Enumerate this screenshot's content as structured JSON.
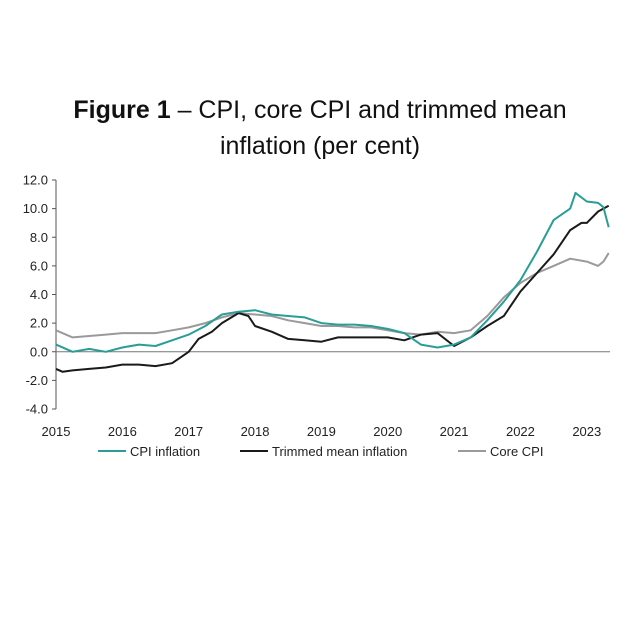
{
  "title": {
    "bold": "Figure 1",
    "rest_line1": " – CPI, core CPI and trimmed mean",
    "rest_line2": "inflation (per cent)"
  },
  "chart_data": {
    "type": "line",
    "ylim": [
      -4,
      12
    ],
    "yticks": [
      "12.0",
      "10.0",
      "8.0",
      "6.0",
      "4.0",
      "2.0",
      "0.0",
      "-2.0",
      "-4.0"
    ],
    "xlim": [
      2015,
      2023.35
    ],
    "xticks": [
      "2015",
      "2016",
      "2017",
      "2018",
      "2019",
      "2020",
      "2021",
      "2022",
      "2023"
    ],
    "legend_position": "bottom",
    "series": [
      {
        "name": "CPI inflation",
        "color": "#2a9d96",
        "points": [
          [
            2015.0,
            0.5
          ],
          [
            2015.25,
            0.0
          ],
          [
            2015.5,
            0.2
          ],
          [
            2015.75,
            0.0
          ],
          [
            2016.0,
            0.3
          ],
          [
            2016.25,
            0.5
          ],
          [
            2016.5,
            0.4
          ],
          [
            2016.75,
            0.8
          ],
          [
            2017.0,
            1.2
          ],
          [
            2017.25,
            1.8
          ],
          [
            2017.5,
            2.6
          ],
          [
            2017.75,
            2.8
          ],
          [
            2018.0,
            2.9
          ],
          [
            2018.25,
            2.6
          ],
          [
            2018.5,
            2.5
          ],
          [
            2018.75,
            2.4
          ],
          [
            2019.0,
            2.0
          ],
          [
            2019.25,
            1.9
          ],
          [
            2019.5,
            1.9
          ],
          [
            2019.75,
            1.8
          ],
          [
            2020.0,
            1.6
          ],
          [
            2020.25,
            1.3
          ],
          [
            2020.5,
            0.5
          ],
          [
            2020.75,
            0.3
          ],
          [
            2021.0,
            0.5
          ],
          [
            2021.25,
            1.0
          ],
          [
            2021.5,
            2.2
          ],
          [
            2021.75,
            3.5
          ],
          [
            2022.0,
            5.0
          ],
          [
            2022.25,
            7.0
          ],
          [
            2022.5,
            9.2
          ],
          [
            2022.75,
            10.0
          ],
          [
            2022.83,
            11.1
          ],
          [
            2023.0,
            10.5
          ],
          [
            2023.17,
            10.4
          ],
          [
            2023.25,
            10.1
          ],
          [
            2023.33,
            8.7
          ]
        ]
      },
      {
        "name": "Trimmed mean inflation",
        "color": "#1a1a1a",
        "points": [
          [
            2015.0,
            -1.2
          ],
          [
            2015.1,
            -1.4
          ],
          [
            2015.25,
            -1.3
          ],
          [
            2015.5,
            -1.2
          ],
          [
            2015.75,
            -1.1
          ],
          [
            2016.0,
            -0.9
          ],
          [
            2016.25,
            -0.9
          ],
          [
            2016.5,
            -1.0
          ],
          [
            2016.75,
            -0.8
          ],
          [
            2017.0,
            0.0
          ],
          [
            2017.15,
            0.9
          ],
          [
            2017.35,
            1.4
          ],
          [
            2017.5,
            2.0
          ],
          [
            2017.75,
            2.7
          ],
          [
            2017.9,
            2.5
          ],
          [
            2018.0,
            1.8
          ],
          [
            2018.25,
            1.4
          ],
          [
            2018.5,
            0.9
          ],
          [
            2018.75,
            0.8
          ],
          [
            2019.0,
            0.7
          ],
          [
            2019.25,
            1.0
          ],
          [
            2019.5,
            1.0
          ],
          [
            2019.75,
            1.0
          ],
          [
            2020.0,
            1.0
          ],
          [
            2020.25,
            0.8
          ],
          [
            2020.5,
            1.2
          ],
          [
            2020.75,
            1.3
          ],
          [
            2021.0,
            0.4
          ],
          [
            2021.25,
            1.0
          ],
          [
            2021.5,
            1.8
          ],
          [
            2021.75,
            2.5
          ],
          [
            2022.0,
            4.2
          ],
          [
            2022.25,
            5.5
          ],
          [
            2022.5,
            6.8
          ],
          [
            2022.75,
            8.5
          ],
          [
            2022.92,
            9.0
          ],
          [
            2023.0,
            9.0
          ],
          [
            2023.17,
            9.8
          ],
          [
            2023.33,
            10.2
          ]
        ]
      },
      {
        "name": "Core CPI",
        "color": "#9a9a9a",
        "points": [
          [
            2015.0,
            1.5
          ],
          [
            2015.25,
            1.0
          ],
          [
            2015.5,
            1.1
          ],
          [
            2015.75,
            1.2
          ],
          [
            2016.0,
            1.3
          ],
          [
            2016.25,
            1.3
          ],
          [
            2016.5,
            1.3
          ],
          [
            2016.75,
            1.5
          ],
          [
            2017.0,
            1.7
          ],
          [
            2017.25,
            2.0
          ],
          [
            2017.5,
            2.4
          ],
          [
            2017.75,
            2.7
          ],
          [
            2018.0,
            2.6
          ],
          [
            2018.25,
            2.5
          ],
          [
            2018.5,
            2.2
          ],
          [
            2018.75,
            2.0
          ],
          [
            2019.0,
            1.8
          ],
          [
            2019.25,
            1.8
          ],
          [
            2019.5,
            1.7
          ],
          [
            2019.75,
            1.7
          ],
          [
            2020.0,
            1.5
          ],
          [
            2020.25,
            1.3
          ],
          [
            2020.5,
            1.2
          ],
          [
            2020.75,
            1.4
          ],
          [
            2021.0,
            1.3
          ],
          [
            2021.25,
            1.5
          ],
          [
            2021.5,
            2.5
          ],
          [
            2021.75,
            3.8
          ],
          [
            2022.0,
            4.8
          ],
          [
            2022.25,
            5.5
          ],
          [
            2022.5,
            6.0
          ],
          [
            2022.75,
            6.5
          ],
          [
            2023.0,
            6.3
          ],
          [
            2023.17,
            6.0
          ],
          [
            2023.25,
            6.3
          ],
          [
            2023.33,
            6.9
          ]
        ]
      }
    ]
  }
}
